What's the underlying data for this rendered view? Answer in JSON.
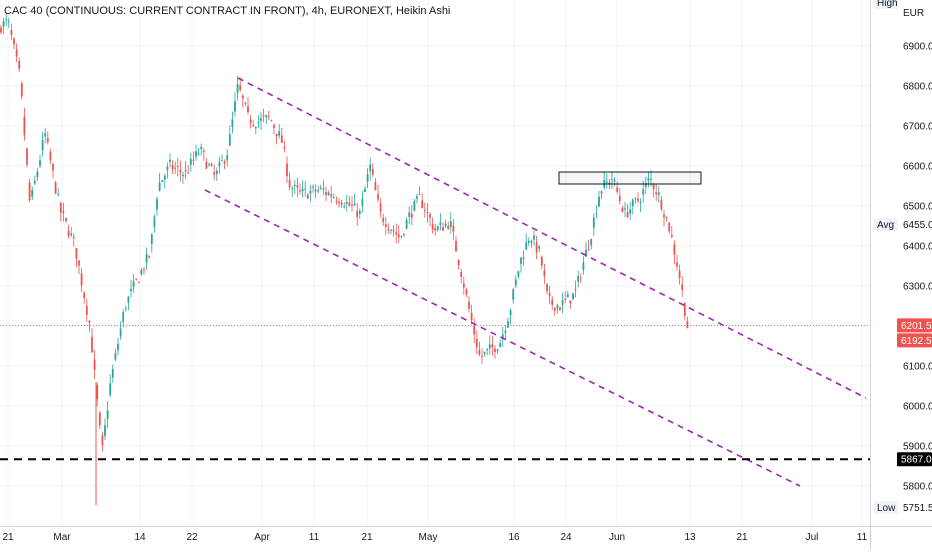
{
  "header": {
    "title": "CAC 40 (CONTINUOUS: CURRENT CONTRACT IN FRONT), 4h, EURONEXT, Heikin Ashi"
  },
  "price_axis": {
    "currency": "EUR",
    "high_label": "High",
    "avg_label": "Avg",
    "avg_value": "6455.0",
    "low_label": "Low",
    "low_value": "5751.5",
    "last_price": "6201.5",
    "second_price": "6192.5",
    "support_price": "5867.0"
  },
  "colors": {
    "up": "#26a69a",
    "down": "#ef5350",
    "channel": "#9c27b0",
    "support": "#000000",
    "last_line": "#ef5350",
    "axis_text": "#131722"
  },
  "chart_data": {
    "type": "candlestick",
    "style": "Heikin Ashi",
    "timeframe": "4h",
    "exchange": "EURONEXT",
    "ylim": [
      5730,
      7000
    ],
    "y_ticks": [
      5800,
      5900,
      6000,
      6100,
      6200,
      6300,
      6400,
      6500,
      6600,
      6700,
      6800,
      6900
    ],
    "x_tick_labels": [
      "21",
      "Mar",
      "14",
      "22",
      "Apr",
      "11",
      "21",
      "May",
      "16",
      "24",
      "Jun",
      "13",
      "21",
      "Jul",
      "11"
    ],
    "grid": true,
    "path_points": [
      [
        0,
        6950
      ],
      [
        8,
        6960
      ],
      [
        20,
        6820
      ],
      [
        30,
        6500
      ],
      [
        45,
        6680
      ],
      [
        60,
        6490
      ],
      [
        75,
        6400
      ],
      [
        90,
        6200
      ],
      [
        102,
        5880
      ],
      [
        110,
        6050
      ],
      [
        125,
        6250
      ],
      [
        140,
        6330
      ],
      [
        150,
        6380
      ],
      [
        158,
        6550
      ],
      [
        170,
        6600
      ],
      [
        185,
        6580
      ],
      [
        200,
        6640
      ],
      [
        215,
        6570
      ],
      [
        228,
        6640
      ],
      [
        238,
        6800
      ],
      [
        248,
        6720
      ],
      [
        258,
        6710
      ],
      [
        270,
        6720
      ],
      [
        282,
        6660
      ],
      [
        290,
        6550
      ],
      [
        300,
        6530
      ],
      [
        320,
        6540
      ],
      [
        340,
        6520
      ],
      [
        360,
        6480
      ],
      [
        370,
        6600
      ],
      [
        380,
        6480
      ],
      [
        400,
        6420
      ],
      [
        410,
        6480
      ],
      [
        420,
        6520
      ],
      [
        435,
        6440
      ],
      [
        450,
        6460
      ],
      [
        460,
        6350
      ],
      [
        470,
        6230
      ],
      [
        480,
        6120
      ],
      [
        490,
        6140
      ],
      [
        500,
        6160
      ],
      [
        510,
        6240
      ],
      [
        520,
        6360
      ],
      [
        530,
        6430
      ],
      [
        540,
        6380
      ],
      [
        548,
        6260
      ],
      [
        560,
        6250
      ],
      [
        575,
        6280
      ],
      [
        590,
        6420
      ],
      [
        600,
        6540
      ],
      [
        612,
        6570
      ],
      [
        625,
        6480
      ],
      [
        640,
        6520
      ],
      [
        650,
        6570
      ],
      [
        660,
        6520
      ],
      [
        670,
        6440
      ],
      [
        680,
        6320
      ],
      [
        688,
        6190
      ]
    ],
    "channel_upper": {
      "start": [
        "Mar 29",
        6820
      ],
      "end": [
        "Jul 11",
        6020
      ]
    },
    "channel_lower": {
      "start": [
        "Mar 22",
        6540
      ],
      "end": [
        "Jul 4",
        5800
      ]
    },
    "resistance_zone": {
      "top": 6585,
      "bottom": 6555
    },
    "support_level": 5867.0,
    "last_value": 6201.5,
    "avg": 6455.0,
    "low": 5751.5
  }
}
